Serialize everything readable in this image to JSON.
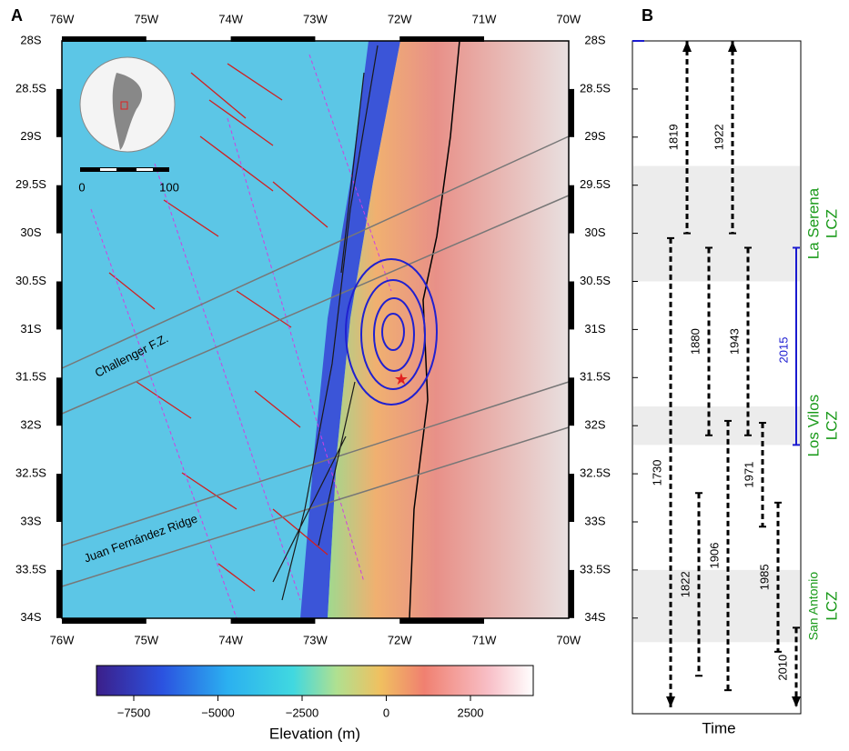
{
  "panel_a": {
    "label": "A",
    "lon_labels": [
      "76W",
      "75W",
      "74W",
      "73W",
      "72W",
      "71W",
      "70W"
    ],
    "lat_labels": [
      "28S",
      "28.5S",
      "29S",
      "29.5S",
      "30S",
      "30.5S",
      "31S",
      "31.5S",
      "32S",
      "32.5S",
      "33S",
      "33.5S",
      "34S"
    ],
    "scale_labels": [
      "0",
      "100"
    ],
    "features": [
      "Challenger F.Z.",
      "Juan Fernández Ridge"
    ],
    "colorbar": {
      "ticks": [
        "−7500",
        "−5000",
        "−2500",
        "0",
        "2500"
      ],
      "title": "Elevation (m)"
    }
  },
  "panel_b": {
    "label": "B",
    "axis_title": "Time",
    "zones": [
      {
        "name": "La Serena",
        "suffix": "LCZ",
        "from": 29.3,
        "to": 30.5
      },
      {
        "name": "Los Vilos",
        "suffix": "LCZ",
        "from": 31.8,
        "to": 32.2
      },
      {
        "name": "San Antonio",
        "suffix": "LCZ",
        "from": 33.5,
        "to": 34.25
      }
    ],
    "events": [
      {
        "year": "1819",
        "from": 28,
        "to": 30
      },
      {
        "year": "1922",
        "from": 28,
        "to": 30
      },
      {
        "year": "1730",
        "from": 30.05,
        "to": 35
      },
      {
        "year": "1880",
        "from": 30.15,
        "to": 32.1
      },
      {
        "year": "1943",
        "from": 30.15,
        "to": 32.1
      },
      {
        "year": "1822",
        "from": 32.7,
        "to": 34.6
      },
      {
        "year": "1906",
        "from": 31.95,
        "to": 34.75
      },
      {
        "year": "1971",
        "from": 31.97,
        "to": 33.05
      },
      {
        "year": "1985",
        "from": 32.8,
        "to": 34.35
      },
      {
        "year": "2010",
        "from": 34.1,
        "to": 35
      }
    ],
    "current": {
      "year": "2015",
      "from": 30.15,
      "to": 32.2
    }
  }
}
